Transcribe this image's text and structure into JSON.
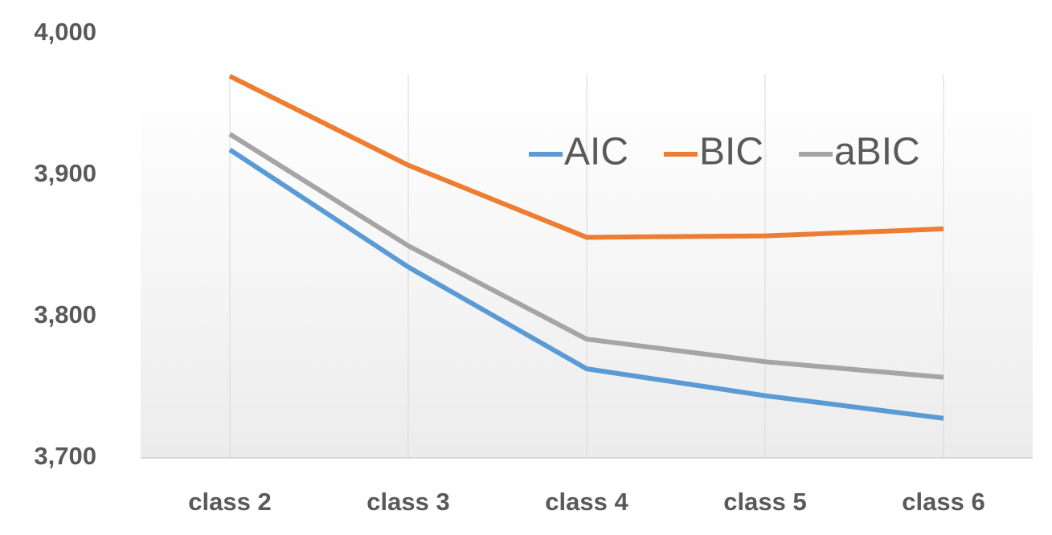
{
  "chart_data": {
    "type": "line",
    "categories": [
      "class 2",
      "class 3",
      "class 4",
      "class 5",
      "class 6"
    ],
    "series": [
      {
        "name": "AIC",
        "color": "#5b9bd5",
        "values": [
          3918,
          3835,
          3763,
          3744,
          3728
        ]
      },
      {
        "name": "BIC",
        "color": "#ed7d31",
        "values": [
          3970,
          3907,
          3856,
          3857,
          3862
        ]
      },
      {
        "name": "aBIC",
        "color": "#a5a5a5",
        "values": [
          3929,
          3850,
          3784,
          3768,
          3757
        ]
      }
    ],
    "ylim": [
      3700,
      4000
    ],
    "yticks": [
      {
        "value": 3700,
        "label": "3,700"
      },
      {
        "value": 3800,
        "label": "3,800"
      },
      {
        "value": 3900,
        "label": "3,900"
      },
      {
        "value": 4000,
        "label": "4,000"
      }
    ],
    "grid": true,
    "legend": "top-right"
  }
}
